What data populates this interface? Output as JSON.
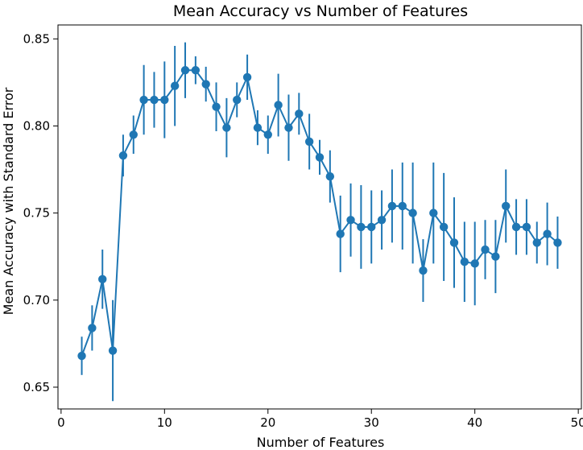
{
  "chart_data": {
    "type": "line",
    "title": "Mean Accuracy vs Number of Features",
    "xlabel": "Number of Features",
    "ylabel": "Mean Accuracy with Standard Error",
    "xlim": [
      -0.3,
      50.3
    ],
    "ylim": [
      0.6375,
      0.858
    ],
    "xticks": [
      0,
      10,
      20,
      30,
      40,
      50
    ],
    "yticks": [
      0.65,
      0.7,
      0.75,
      0.8,
      0.85
    ],
    "xtick_labels": [
      "0",
      "10",
      "20",
      "30",
      "40",
      "50"
    ],
    "ytick_labels": [
      "0.65",
      "0.70",
      "0.75",
      "0.80",
      "0.85"
    ],
    "grid": false,
    "color": "#1f77b4",
    "series": [
      {
        "x": [
          2,
          3,
          4,
          5,
          6,
          7,
          8,
          9,
          10,
          11,
          12,
          13,
          14,
          15,
          16,
          17,
          18,
          19,
          20,
          21,
          22,
          23,
          24,
          25,
          26,
          27,
          28,
          29,
          30,
          31,
          32,
          33,
          34,
          35,
          36,
          37,
          38,
          39,
          40,
          41,
          42,
          43,
          44,
          45,
          46,
          47,
          48
        ],
        "y": [
          0.668,
          0.684,
          0.712,
          0.671,
          0.783,
          0.795,
          0.815,
          0.815,
          0.815,
          0.823,
          0.832,
          0.832,
          0.824,
          0.811,
          0.799,
          0.815,
          0.828,
          0.799,
          0.795,
          0.812,
          0.799,
          0.807,
          0.791,
          0.782,
          0.771,
          0.738,
          0.746,
          0.742,
          0.742,
          0.746,
          0.754,
          0.754,
          0.75,
          0.717,
          0.75,
          0.742,
          0.733,
          0.722,
          0.721,
          0.729,
          0.725,
          0.754,
          0.742,
          0.742,
          0.733,
          0.738,
          0.733
        ],
        "err": [
          0.011,
          0.013,
          0.017,
          0.029,
          0.012,
          0.011,
          0.02,
          0.016,
          0.022,
          0.023,
          0.016,
          0.008,
          0.01,
          0.014,
          0.017,
          0.01,
          0.013,
          0.01,
          0.011,
          0.018,
          0.019,
          0.012,
          0.016,
          0.01,
          0.015,
          0.022,
          0.021,
          0.024,
          0.021,
          0.017,
          0.021,
          0.025,
          0.029,
          0.018,
          0.029,
          0.031,
          0.026,
          0.023,
          0.024,
          0.017,
          0.021,
          0.021,
          0.016,
          0.016,
          0.012,
          0.018,
          0.015
        ]
      }
    ]
  }
}
